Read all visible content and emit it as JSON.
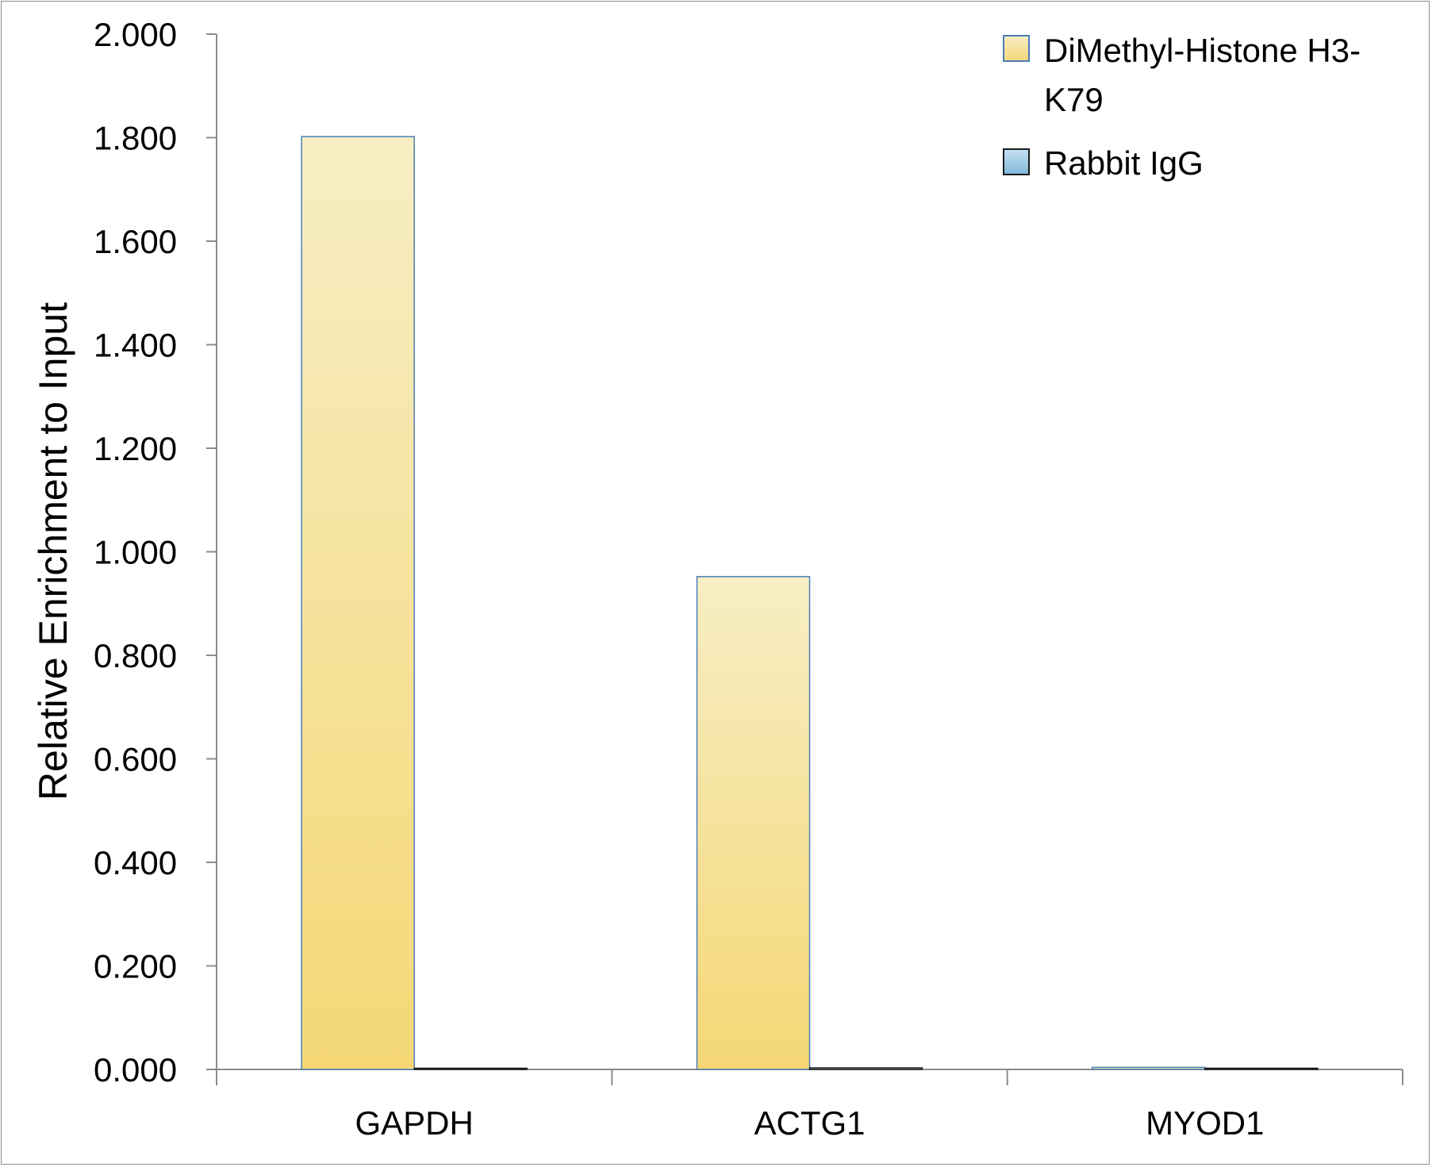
{
  "chart_data": {
    "type": "bar",
    "title": "",
    "xlabel": "",
    "ylabel": "Relative Enrichment to Input",
    "ylim": [
      0,
      2.0
    ],
    "yticks": [
      "0.000",
      "0.200",
      "0.400",
      "0.600",
      "0.800",
      "1.000",
      "1.200",
      "1.400",
      "1.600",
      "1.800",
      "2.000"
    ],
    "categories": [
      "GAPDH",
      "ACTG1",
      "MYOD1"
    ],
    "series": [
      {
        "name": "DiMethyl-Histone H3-K79",
        "legend_lines": [
          "DiMethyl-Histone H3-",
          "K79"
        ],
        "values": [
          1.802,
          0.952,
          0.004
        ],
        "color_top": "#f7eec4",
        "color_bottom": "#f5d775",
        "edge": "#4a7ebb"
      },
      {
        "name": "Rabbit IgG",
        "legend_lines": [
          "Rabbit IgG"
        ],
        "values": [
          0.002,
          0.003,
          0.002
        ],
        "color_top": "#c6e2f2",
        "color_bottom": "#7fb8da",
        "edge": "#1a1a1a"
      }
    ],
    "grid": false,
    "legend": "top-right"
  }
}
